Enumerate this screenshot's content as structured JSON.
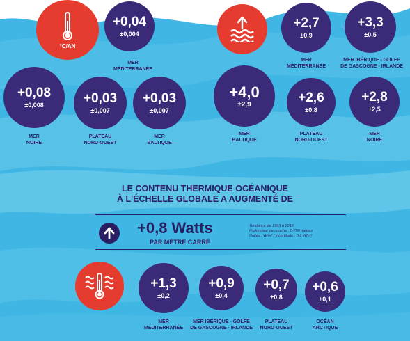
{
  "top_left": {
    "unit_label": "°C/AN",
    "items": [
      {
        "id": "med",
        "value": "+0,04",
        "unc": "±0,004",
        "label": ""
      },
      {
        "id": "noire",
        "value": "+0,08",
        "unc": "±0,008",
        "label": "MER\nNOIRE"
      },
      {
        "id": "plateau",
        "value": "+0,03",
        "unc": "±0,007",
        "label": "PLATEAU\nNORD-OUEST"
      },
      {
        "id": "baltique",
        "value": "+0,03",
        "unc": "±0,007",
        "label": "MER\nBALTIQUE"
      }
    ],
    "med_label": "MER\nMÉDITERRANÉE"
  },
  "top_right": {
    "items": [
      {
        "id": "med",
        "value": "+2,7",
        "unc": "±0,9",
        "label": "MER\nMÉDITERRANÉE"
      },
      {
        "id": "iberique",
        "value": "+3,3",
        "unc": "±0,5",
        "label": "MER IBÉRIQUE - GOLFE\nDE GASCOGNE - IRLANDE"
      },
      {
        "id": "baltique",
        "value": "+4,0",
        "unc": "±2,9",
        "label": "MER\nBALTIQUE"
      },
      {
        "id": "plateau",
        "value": "+2,6",
        "unc": "±0,8",
        "label": "PLATEAU\nNORD-OUEST"
      },
      {
        "id": "noire",
        "value": "+2,8",
        "unc": "±2,5",
        "label": "MER\nNOIRE"
      }
    ]
  },
  "global": {
    "heading_line1": "LE CONTENU THERMIQUE OCÉANIQUE",
    "heading_line2": "À L'ÉCHELLE GLOBALE A AUGMENTÉ DE",
    "value": "+0,8 Watts",
    "sub": "PAR MÈTRE CARRÉ",
    "note_line1": "Tendance de 1993 à 2018",
    "note_line2": "Profondeur de couche : 0-700 mètres",
    "note_line3": "Unités : W/m² / incertitude : 0,1 W/m²"
  },
  "bottom": {
    "items": [
      {
        "id": "med",
        "value": "+1,3",
        "unc": "±0,2",
        "label": "MER\nMÉDITERRANÉE"
      },
      {
        "id": "iberique",
        "value": "+0,9",
        "unc": "±0,4",
        "label": "MER IBÉRIQUE - GOLFE\nDE GASCOGNE - IRLANDE"
      },
      {
        "id": "plateau",
        "value": "+0,7",
        "unc": "±0,8",
        "label": "PLATEAU\nNORD-OUEST"
      },
      {
        "id": "arctique",
        "value": "+0,6",
        "unc": "±0,1",
        "label": "OCÉAN\nARCTIQUE"
      }
    ]
  },
  "colors": {
    "circle": "#3b2a78",
    "accent_red": "#e63c2f",
    "water": "#3fb6e3",
    "text_dark": "#2b1f63"
  }
}
